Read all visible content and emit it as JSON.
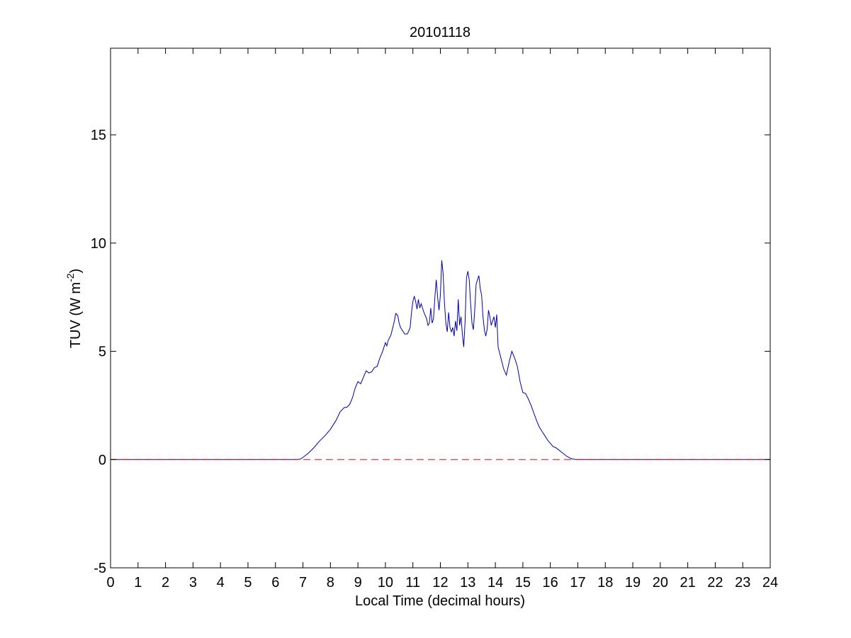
{
  "chart_data": {
    "type": "line",
    "title": "20101118",
    "xlabel": "Local Time (decimal hours)",
    "ylabel": {
      "prefix": "TUV (W m",
      "superscript": "-2",
      "suffix": ")"
    },
    "xlim": [
      0,
      24
    ],
    "ylim": [
      -5,
      19
    ],
    "xticks": [
      0,
      1,
      2,
      3,
      4,
      5,
      6,
      7,
      8,
      9,
      10,
      11,
      12,
      13,
      14,
      15,
      16,
      17,
      18,
      19,
      20,
      21,
      22,
      23,
      24
    ],
    "yticks": [
      -5,
      0,
      5,
      10,
      15
    ],
    "grid": false,
    "series": [
      {
        "name": "",
        "color": "#0000aa",
        "style": "solid",
        "points": [
          [
            0,
            0
          ],
          [
            6.8,
            0
          ],
          [
            6.9,
            0.02
          ],
          [
            7.0,
            0.1
          ],
          [
            7.2,
            0.3
          ],
          [
            7.4,
            0.55
          ],
          [
            7.6,
            0.85
          ],
          [
            7.8,
            1.1
          ],
          [
            8.0,
            1.4
          ],
          [
            8.2,
            1.8
          ],
          [
            8.35,
            2.2
          ],
          [
            8.5,
            2.4
          ],
          [
            8.6,
            2.42
          ],
          [
            8.7,
            2.55
          ],
          [
            8.8,
            2.85
          ],
          [
            8.9,
            3.3
          ],
          [
            9.0,
            3.6
          ],
          [
            9.1,
            3.5
          ],
          [
            9.2,
            3.8
          ],
          [
            9.3,
            4.1
          ],
          [
            9.4,
            4.0
          ],
          [
            9.5,
            4.05
          ],
          [
            9.6,
            4.25
          ],
          [
            9.7,
            4.3
          ],
          [
            9.8,
            4.7
          ],
          [
            9.9,
            5.0
          ],
          [
            10.0,
            5.4
          ],
          [
            10.05,
            5.25
          ],
          [
            10.1,
            5.5
          ],
          [
            10.2,
            5.75
          ],
          [
            10.3,
            6.25
          ],
          [
            10.38,
            6.75
          ],
          [
            10.45,
            6.65
          ],
          [
            10.5,
            6.3
          ],
          [
            10.55,
            6.1
          ],
          [
            10.6,
            6.0
          ],
          [
            10.7,
            5.8
          ],
          [
            10.8,
            5.8
          ],
          [
            10.9,
            6.1
          ],
          [
            10.95,
            6.8
          ],
          [
            11.0,
            7.3
          ],
          [
            11.05,
            7.55
          ],
          [
            11.1,
            7.3
          ],
          [
            11.15,
            6.95
          ],
          [
            11.2,
            7.4
          ],
          [
            11.25,
            7.0
          ],
          [
            11.3,
            7.2
          ],
          [
            11.4,
            6.8
          ],
          [
            11.5,
            6.5
          ],
          [
            11.55,
            6.2
          ],
          [
            11.6,
            6.3
          ],
          [
            11.65,
            7.0
          ],
          [
            11.7,
            6.3
          ],
          [
            11.75,
            6.5
          ],
          [
            11.8,
            7.5
          ],
          [
            11.85,
            8.3
          ],
          [
            11.9,
            7.5
          ],
          [
            11.95,
            6.9
          ],
          [
            12.0,
            7.6
          ],
          [
            12.05,
            9.2
          ],
          [
            12.1,
            8.6
          ],
          [
            12.15,
            7.2
          ],
          [
            12.2,
            6.3
          ],
          [
            12.25,
            5.9
          ],
          [
            12.3,
            6.8
          ],
          [
            12.35,
            6.1
          ],
          [
            12.4,
            5.9
          ],
          [
            12.45,
            6.1
          ],
          [
            12.5,
            5.7
          ],
          [
            12.55,
            6.4
          ],
          [
            12.6,
            5.95
          ],
          [
            12.65,
            7.4
          ],
          [
            12.7,
            6.2
          ],
          [
            12.75,
            6.6
          ],
          [
            12.8,
            5.8
          ],
          [
            12.85,
            5.2
          ],
          [
            12.9,
            6.4
          ],
          [
            12.95,
            8.4
          ],
          [
            13.0,
            8.7
          ],
          [
            13.05,
            8.3
          ],
          [
            13.1,
            7.2
          ],
          [
            13.15,
            6.3
          ],
          [
            13.2,
            6.0
          ],
          [
            13.25,
            6.9
          ],
          [
            13.3,
            8.1
          ],
          [
            13.4,
            8.5
          ],
          [
            13.45,
            7.9
          ],
          [
            13.5,
            7.6
          ],
          [
            13.55,
            6.6
          ],
          [
            13.6,
            6.0
          ],
          [
            13.65,
            5.7
          ],
          [
            13.7,
            6.0
          ],
          [
            13.75,
            6.9
          ],
          [
            13.8,
            6.6
          ],
          [
            13.85,
            6.2
          ],
          [
            13.9,
            6.4
          ],
          [
            13.95,
            6.6
          ],
          [
            14.0,
            6.1
          ],
          [
            14.05,
            6.7
          ],
          [
            14.1,
            5.2
          ],
          [
            14.2,
            4.7
          ],
          [
            14.3,
            4.2
          ],
          [
            14.4,
            3.9
          ],
          [
            14.5,
            4.5
          ],
          [
            14.6,
            5.0
          ],
          [
            14.7,
            4.7
          ],
          [
            14.8,
            4.3
          ],
          [
            14.9,
            3.6
          ],
          [
            15.0,
            3.1
          ],
          [
            15.1,
            3.05
          ],
          [
            15.2,
            2.8
          ],
          [
            15.3,
            2.5
          ],
          [
            15.4,
            2.15
          ],
          [
            15.5,
            1.8
          ],
          [
            15.6,
            1.5
          ],
          [
            15.7,
            1.3
          ],
          [
            15.8,
            1.1
          ],
          [
            15.9,
            0.9
          ],
          [
            16.0,
            0.75
          ],
          [
            16.1,
            0.6
          ],
          [
            16.2,
            0.55
          ],
          [
            16.3,
            0.45
          ],
          [
            16.4,
            0.35
          ],
          [
            16.5,
            0.25
          ],
          [
            16.6,
            0.15
          ],
          [
            16.7,
            0.08
          ],
          [
            16.8,
            0.03
          ],
          [
            16.9,
            0.01
          ],
          [
            17.0,
            0
          ],
          [
            24,
            0
          ]
        ]
      },
      {
        "name": "",
        "color": "#ff0000",
        "style": "dashed",
        "points": [
          [
            0,
            0
          ],
          [
            24,
            0
          ]
        ]
      }
    ]
  }
}
